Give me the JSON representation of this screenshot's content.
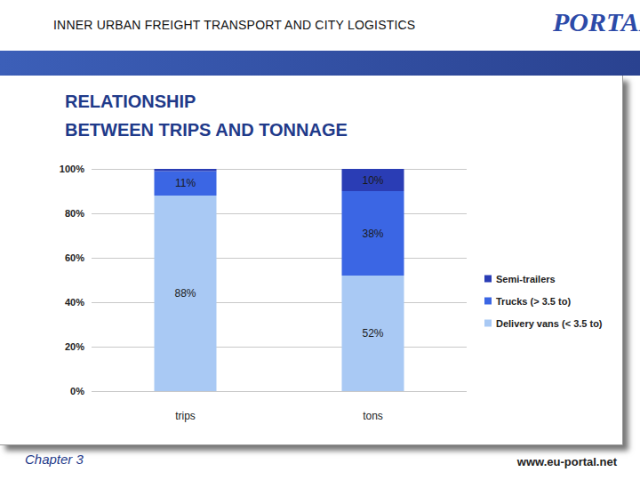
{
  "header": {
    "text": "INNER URBAN FREIGHT TRANSPORT AND CITY LOGISTICS",
    "logo": "PORTAL"
  },
  "chart_data": {
    "type": "bar",
    "title": "RELATIONSHIP\nBETWEEN TRIPS AND TONNAGE",
    "categories": [
      "trips",
      "tons"
    ],
    "stacked": true,
    "data_labels": true,
    "grid": true,
    "legend": "right",
    "ylim": [
      0,
      100
    ],
    "yticks": [
      {
        "value": 0,
        "label": "0%"
      },
      {
        "value": 20,
        "label": "20%"
      },
      {
        "value": 40,
        "label": "40%"
      },
      {
        "value": 60,
        "label": "60%"
      },
      {
        "value": 80,
        "label": "80%"
      },
      {
        "value": 100,
        "label": "100%"
      }
    ],
    "series": [
      {
        "name": "Delivery vans (< 3.5 to)",
        "color": "#a9c9f4",
        "values": [
          88,
          52
        ],
        "value_labels": [
          "88%",
          "52%"
        ]
      },
      {
        "name": "Trucks (> 3.5 to)",
        "color": "#3b66e4",
        "values": [
          11,
          38
        ],
        "value_labels": [
          "11%",
          "38%"
        ]
      },
      {
        "name": "Semi-trailers",
        "color": "#2a3db5",
        "values": [
          1,
          10
        ],
        "value_labels": [
          null,
          "10%"
        ]
      }
    ]
  },
  "footer": {
    "left": "Chapter 3",
    "right": "www.eu-portal.net"
  }
}
